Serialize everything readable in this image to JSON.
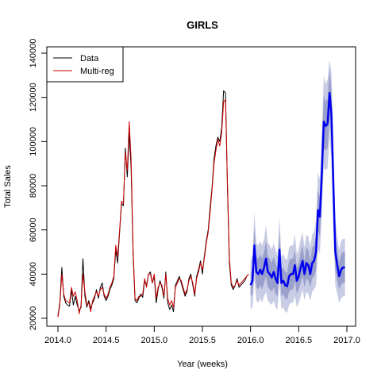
{
  "chart_data": {
    "type": "line",
    "title": "GIRLS",
    "xlabel": "Year (weeks)",
    "ylabel": "Total Sales",
    "xlim": [
      2014.0,
      2017.0
    ],
    "ylim": [
      20000,
      140000
    ],
    "x_ticks": [
      "2014.0",
      "2014.5",
      "2015.0",
      "2015.5",
      "2016.0",
      "2016.5",
      "2017.0"
    ],
    "y_ticks": [
      "20000",
      "40000",
      "60000",
      "80000",
      "100000",
      "120000",
      "140000"
    ],
    "legend": {
      "position": "top-left",
      "entries": [
        {
          "label": "Data",
          "color": "#000000"
        },
        {
          "label": "Multi-reg",
          "color": "#cc0000"
        }
      ]
    },
    "series": [
      {
        "name": "Data",
        "color": "#000000",
        "x": [
          2014.0,
          2014.02,
          2014.04,
          2014.06,
          2014.08,
          2014.1,
          2014.12,
          2014.14,
          2014.16,
          2014.18,
          2014.2,
          2014.22,
          2014.24,
          2014.26,
          2014.28,
          2014.3,
          2014.32,
          2014.34,
          2014.36,
          2014.38,
          2014.4,
          2014.42,
          2014.44,
          2014.46,
          2014.48,
          2014.5,
          2014.52,
          2014.54,
          2014.56,
          2014.58,
          2014.6,
          2014.62,
          2014.64,
          2014.66,
          2014.68,
          2014.7,
          2014.72,
          2014.74,
          2014.76,
          2014.78,
          2014.8,
          2014.82,
          2014.84,
          2014.86,
          2014.88,
          2014.9,
          2014.92,
          2014.94,
          2014.96,
          2014.98,
          2015.0,
          2015.02,
          2015.04,
          2015.06,
          2015.08,
          2015.1,
          2015.12,
          2015.14,
          2015.16,
          2015.18,
          2015.2,
          2015.22,
          2015.24,
          2015.26,
          2015.28,
          2015.3,
          2015.32,
          2015.34,
          2015.36,
          2015.38,
          2015.4,
          2015.42,
          2015.44,
          2015.46,
          2015.48,
          2015.5,
          2015.52,
          2015.54,
          2015.56,
          2015.58,
          2015.6,
          2015.62,
          2015.64,
          2015.66,
          2015.68,
          2015.7,
          2015.72,
          2015.74,
          2015.76,
          2015.78,
          2015.8,
          2015.82,
          2015.84,
          2015.86,
          2015.88,
          2015.9,
          2015.92,
          2015.94,
          2015.96,
          2015.98
        ],
        "values": [
          21000,
          27000,
          43000,
          30000,
          27000,
          26000,
          25500,
          33000,
          26000,
          30000,
          26000,
          23500,
          25000,
          47000,
          30000,
          25000,
          28000,
          24500,
          27000,
          29000,
          33000,
          29000,
          34000,
          36000,
          30000,
          28000,
          30000,
          33000,
          35000,
          38000,
          51000,
          45000,
          59000,
          72000,
          71000,
          97000,
          84000,
          104000,
          88000,
          50000,
          28000,
          27000,
          29000,
          31000,
          29500,
          37000,
          35000,
          40000,
          41000,
          36000,
          39000,
          27000,
          33000,
          37000,
          34000,
          29000,
          41000,
          27000,
          24000,
          26000,
          23000,
          35000,
          37000,
          39000,
          36000,
          33000,
          30000,
          32000,
          38000,
          40000,
          35000,
          30000,
          39000,
          42000,
          46000,
          40000,
          48000,
          55000,
          60000,
          70000,
          79000,
          92000,
          98000,
          102000,
          100000,
          106000,
          123000,
          122000,
          80000,
          45000,
          35000,
          33000,
          35000,
          38000,
          34000,
          35000,
          36000,
          37000,
          39000,
          40000
        ]
      },
      {
        "name": "Multi-reg",
        "color": "#cc0000",
        "x": [
          2014.0,
          2014.02,
          2014.04,
          2014.06,
          2014.08,
          2014.1,
          2014.12,
          2014.14,
          2014.16,
          2014.18,
          2014.2,
          2014.22,
          2014.24,
          2014.26,
          2014.28,
          2014.3,
          2014.32,
          2014.34,
          2014.36,
          2014.38,
          2014.4,
          2014.42,
          2014.44,
          2014.46,
          2014.48,
          2014.5,
          2014.52,
          2014.54,
          2014.56,
          2014.58,
          2014.6,
          2014.62,
          2014.64,
          2014.66,
          2014.68,
          2014.7,
          2014.72,
          2014.74,
          2014.76,
          2014.78,
          2014.8,
          2014.82,
          2014.84,
          2014.86,
          2014.88,
          2014.9,
          2014.92,
          2014.94,
          2014.96,
          2014.98,
          2015.0,
          2015.02,
          2015.04,
          2015.06,
          2015.08,
          2015.1,
          2015.12,
          2015.14,
          2015.16,
          2015.18,
          2015.2,
          2015.22,
          2015.24,
          2015.26,
          2015.28,
          2015.3,
          2015.32,
          2015.34,
          2015.36,
          2015.38,
          2015.4,
          2015.42,
          2015.44,
          2015.46,
          2015.48,
          2015.5,
          2015.52,
          2015.54,
          2015.56,
          2015.58,
          2015.6,
          2015.62,
          2015.64,
          2015.66,
          2015.68,
          2015.7,
          2015.72,
          2015.74,
          2015.76,
          2015.78,
          2015.8,
          2015.82,
          2015.84,
          2015.86,
          2015.88,
          2015.9,
          2015.92,
          2015.94,
          2015.96,
          2015.98
        ],
        "values": [
          20500,
          26000,
          40000,
          31000,
          28000,
          27500,
          27000,
          34000,
          30000,
          32000,
          28000,
          22000,
          26000,
          40000,
          32000,
          26000,
          27000,
          23000,
          28000,
          30000,
          32000,
          30000,
          33000,
          34000,
          31000,
          29000,
          31000,
          34000,
          36000,
          39000,
          53000,
          48000,
          60000,
          73000,
          72000,
          95000,
          87000,
          109000,
          92000,
          52000,
          29000,
          28000,
          30000,
          30000,
          31000,
          38000,
          34000,
          40000,
          40000,
          36000,
          40000,
          29000,
          34000,
          36000,
          35000,
          30000,
          40000,
          29000,
          26000,
          28000,
          25000,
          34000,
          36000,
          38000,
          37000,
          34000,
          31000,
          33000,
          37000,
          39000,
          36000,
          31000,
          38000,
          41000,
          45000,
          42000,
          47000,
          54000,
          59000,
          68000,
          78000,
          90000,
          96000,
          101000,
          98000,
          104000,
          118000,
          119000,
          82000,
          47000,
          36000,
          34000,
          35000,
          37000,
          35000,
          36000,
          37000,
          38000,
          39000,
          40000
        ]
      },
      {
        "name": "",
        "color": "#0000ee",
        "x": [
          2016.0,
          2016.02,
          2016.04,
          2016.06,
          2016.08,
          2016.1,
          2016.12,
          2016.14,
          2016.16,
          2016.18,
          2016.2,
          2016.22,
          2016.24,
          2016.26,
          2016.28,
          2016.3,
          2016.32,
          2016.34,
          2016.36,
          2016.38,
          2016.4,
          2016.42,
          2016.44,
          2016.46,
          2016.48,
          2016.5,
          2016.52,
          2016.54,
          2016.56,
          2016.58,
          2016.6,
          2016.62,
          2016.64,
          2016.66,
          2016.68,
          2016.7,
          2016.72,
          2016.74,
          2016.76,
          2016.78,
          2016.8,
          2016.82,
          2016.84,
          2016.86,
          2016.88,
          2016.9,
          2016.92,
          2016.94,
          2016.96,
          2016.98
        ],
        "values": [
          35000,
          37000,
          53000,
          41000,
          40000,
          42000,
          40000,
          43000,
          47000,
          41000,
          40000,
          38500,
          41000,
          38000,
          36000,
          51000,
          36000,
          37000,
          35000,
          34500,
          39000,
          40000,
          40000,
          44000,
          37000,
          39000,
          43000,
          46000,
          40000,
          45000,
          44000,
          40000,
          45000,
          46000,
          50000,
          69000,
          66000,
          86000,
          109000,
          107000,
          108000,
          122000,
          112000,
          80000,
          50000,
          44000,
          39000,
          42000,
          43000,
          43000
        ],
        "band_inner": {
          "lower": [
            30000,
            31000,
            45000,
            34000,
            33000,
            35000,
            33000,
            36000,
            39000,
            34000,
            33000,
            32000,
            34000,
            31000,
            30000,
            43000,
            30000,
            31000,
            29000,
            28500,
            32000,
            33000,
            33000,
            37000,
            31000,
            33000,
            36000,
            39000,
            34000,
            38000,
            37000,
            34000,
            38000,
            39000,
            42000,
            60000,
            57000,
            76000,
            97000,
            96000,
            97000,
            111000,
            101000,
            70000,
            42000,
            37000,
            33000,
            35000,
            36000,
            36000
          ],
          "upper": [
            40000,
            43000,
            61000,
            48000,
            47000,
            49000,
            47000,
            50000,
            55000,
            48000,
            47000,
            45000,
            48000,
            45000,
            42000,
            59000,
            42000,
            43000,
            41000,
            40500,
            46000,
            47000,
            47000,
            51000,
            43000,
            45000,
            50000,
            53000,
            46000,
            52000,
            51000,
            46000,
            52000,
            53000,
            58000,
            78000,
            75000,
            96000,
            121000,
            118000,
            119000,
            133000,
            123000,
            90000,
            58000,
            51000,
            45000,
            49000,
            50000,
            50000
          ]
        },
        "band_outer": {
          "lower": [
            24000,
            25000,
            38000,
            28000,
            27000,
            29000,
            27000,
            30000,
            32000,
            28000,
            27000,
            26000,
            28000,
            25000,
            24000,
            36000,
            24000,
            25000,
            23000,
            22500,
            26000,
            27000,
            27000,
            30000,
            25000,
            27000,
            30000,
            33000,
            28000,
            32000,
            31000,
            28000,
            32000,
            33000,
            35000,
            52000,
            49000,
            68000,
            88000,
            87000,
            88000,
            102000,
            92000,
            61000,
            35000,
            31000,
            27000,
            29000,
            30000,
            30000
          ],
          "upper": [
            46000,
            49000,
            68000,
            54000,
            53000,
            55000,
            53000,
            56000,
            62000,
            54000,
            53000,
            51000,
            54000,
            51000,
            48000,
            66000,
            48000,
            49000,
            47000,
            46500,
            52000,
            53000,
            53000,
            58000,
            49000,
            51000,
            56000,
            59000,
            52000,
            58000,
            57000,
            52000,
            58000,
            59000,
            65000,
            86000,
            83000,
            104000,
            130000,
            126000,
            128000,
            137000,
            131000,
            99000,
            65000,
            57000,
            51000,
            55000,
            56000,
            56000
          ]
        }
      }
    ],
    "colors": {
      "band_outer": "#c8cce4",
      "band_inner": "#9aa0cc"
    }
  }
}
